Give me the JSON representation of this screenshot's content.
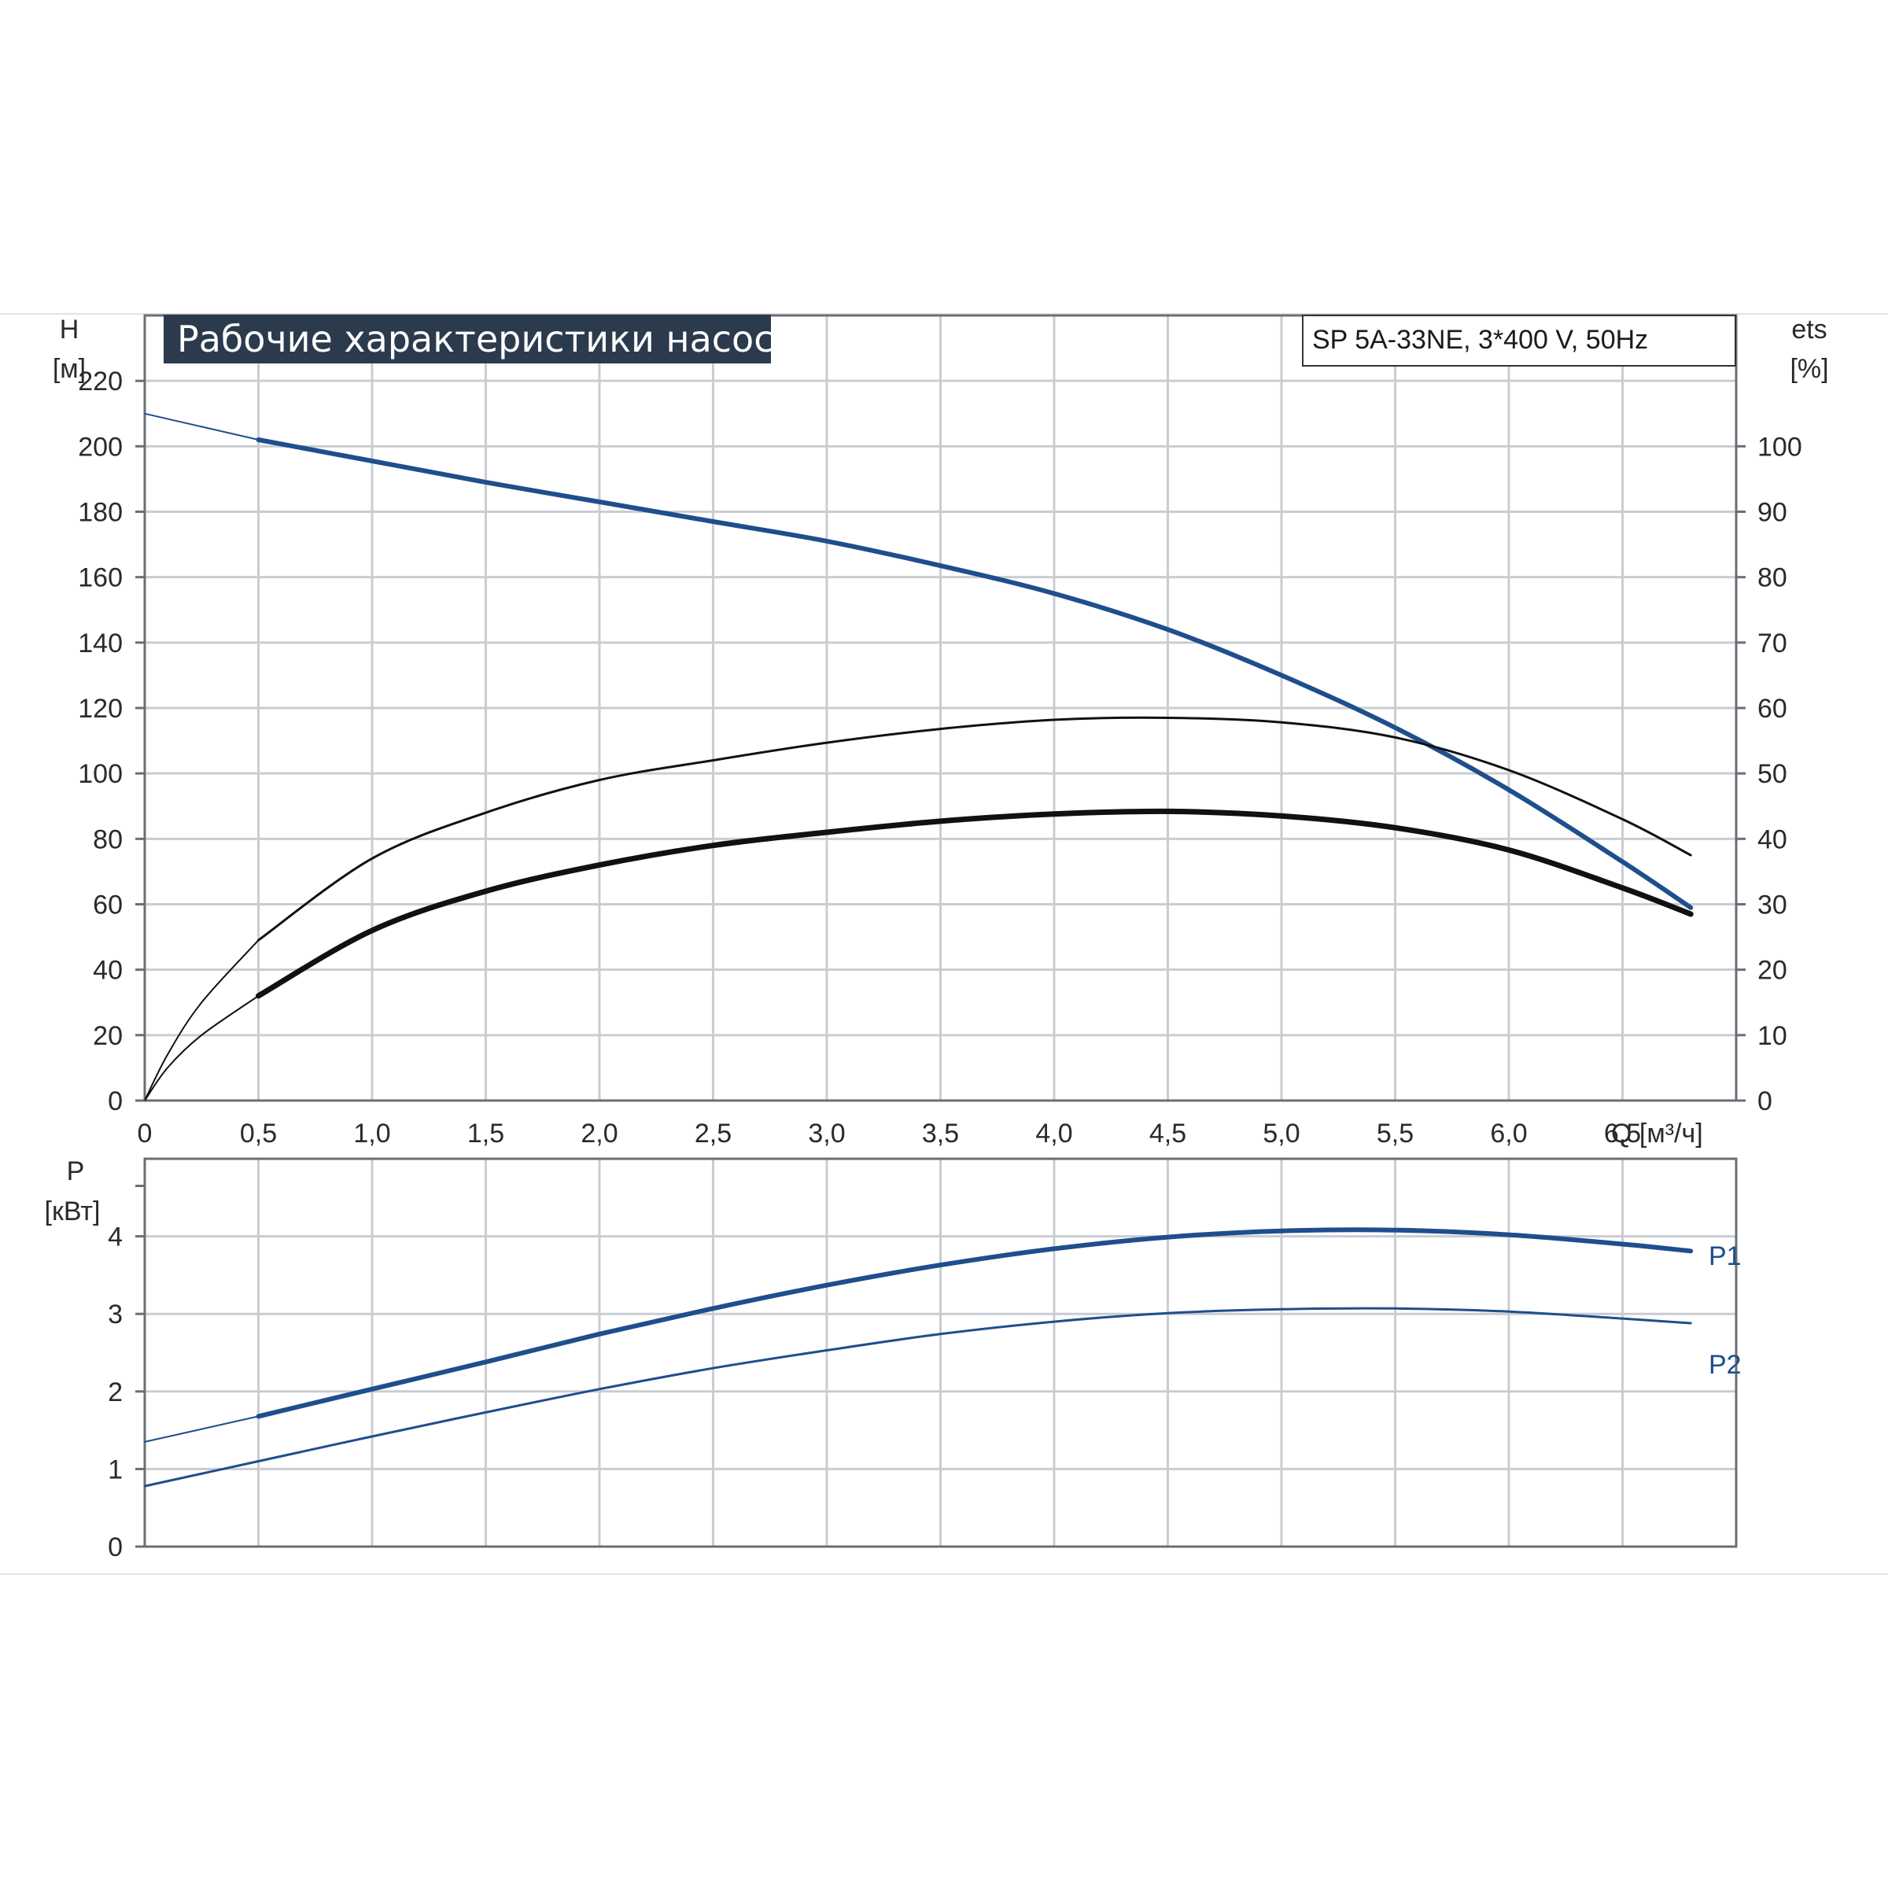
{
  "title": "Рабочие характеристики насоса",
  "model": "SP 5A-33NE, 3*400 V, 50Hz",
  "colors": {
    "blue": "#1f4e8c",
    "black": "#111111",
    "grid": "#c9cdd2",
    "title_bg": "#2b3a4d"
  },
  "chart_data": [
    {
      "type": "line",
      "title": "Рабочие характеристики насоса",
      "xlabel": "Q [м³/ч]",
      "ylabel": "H\n[м]",
      "ylabel_lines": [
        "H",
        "[м]"
      ],
      "y2label_lines": [
        "ets",
        "[%]"
      ],
      "xlim": [
        0,
        7.0
      ],
      "ylim": [
        0,
        240
      ],
      "y2lim": [
        0,
        120
      ],
      "xticks": [
        0,
        0.5,
        1.0,
        1.5,
        2.0,
        2.5,
        3.0,
        3.5,
        4.0,
        4.5,
        5.0,
        5.5,
        6.0,
        6.5
      ],
      "xtick_labels": [
        "0",
        "0,5",
        "1,0",
        "1,5",
        "2,0",
        "2,5",
        "3,0",
        "3,5",
        "4,0",
        "4,5",
        "5,0",
        "5,5",
        "6,0",
        "6,5"
      ],
      "yticks": [
        0,
        20,
        40,
        60,
        80,
        100,
        120,
        140,
        160,
        180,
        200,
        220
      ],
      "ytick_labels": [
        "0",
        "20",
        "40",
        "60",
        "80",
        "100",
        "120",
        "140",
        "160",
        "180",
        "200",
        "220"
      ],
      "y2ticks": [
        0,
        10,
        20,
        30,
        40,
        50,
        60,
        70,
        80,
        90,
        100
      ],
      "y2tick_labels": [
        "0",
        "10",
        "20",
        "30",
        "40",
        "50",
        "60",
        "70",
        "80",
        "90",
        "100"
      ],
      "grid": true,
      "series": [
        {
          "axis": "left",
          "color": "#1f4e8c",
          "width": 6,
          "thin_until": 0.5,
          "x": [
            0,
            0.5,
            1.0,
            1.5,
            2.0,
            2.5,
            3.0,
            3.5,
            4.0,
            4.5,
            5.0,
            5.5,
            6.0,
            6.5,
            6.8
          ],
          "y": [
            210,
            202,
            195.5,
            189,
            183,
            177,
            171,
            163.5,
            155,
            144,
            130,
            114,
            95,
            73,
            59
          ]
        },
        {
          "axis": "right",
          "color": "#111111",
          "width": 3,
          "thin_until": 0.5,
          "x": [
            0,
            0.1,
            0.25,
            0.5,
            1.0,
            1.5,
            2.0,
            2.5,
            3.0,
            3.5,
            4.0,
            4.5,
            5.0,
            5.5,
            6.0,
            6.5,
            6.8
          ],
          "y": [
            0,
            7,
            15,
            24.5,
            37,
            44,
            49,
            52,
            54.7,
            56.8,
            58.2,
            58.5,
            57.8,
            55.5,
            50.5,
            43,
            37.5
          ]
        },
        {
          "axis": "right",
          "color": "#111111",
          "width": 7,
          "thin_until": 0.5,
          "x": [
            0,
            0.1,
            0.25,
            0.5,
            1.0,
            1.5,
            2.0,
            2.5,
            3.0,
            3.5,
            4.0,
            4.5,
            5.0,
            5.5,
            6.0,
            6.5,
            6.8
          ],
          "y": [
            0,
            5,
            10,
            16,
            26,
            32,
            36,
            39,
            41,
            42.7,
            43.8,
            44.2,
            43.5,
            41.7,
            38.3,
            32.5,
            28.5
          ]
        }
      ]
    },
    {
      "type": "line",
      "ylabel": "P\n[кВт]",
      "ylabel_lines": [
        "P",
        "[кВт]"
      ],
      "xlim": [
        0,
        7.0
      ],
      "ylim": [
        0,
        5.0
      ],
      "yticks": [
        0,
        1,
        2,
        3,
        4
      ],
      "ytick_labels": [
        "0",
        "1",
        "2",
        "3",
        "4"
      ],
      "grid": true,
      "series": [
        {
          "name": "P1",
          "color": "#1f4e8c",
          "width": 6,
          "thin_until": 0.5,
          "x": [
            0,
            0.5,
            1.0,
            1.5,
            2.0,
            2.5,
            3.0,
            3.5,
            4.0,
            4.5,
            5.0,
            5.5,
            6.0,
            6.5,
            6.8
          ],
          "y": [
            1.35,
            1.68,
            2.03,
            2.38,
            2.74,
            3.07,
            3.37,
            3.63,
            3.84,
            3.99,
            4.07,
            4.08,
            4.02,
            3.9,
            3.81
          ]
        },
        {
          "name": "P2",
          "color": "#1f4e8c",
          "width": 3,
          "thin_until": 0,
          "x": [
            0,
            0.5,
            1.0,
            1.5,
            2.0,
            2.5,
            3.0,
            3.5,
            4.0,
            4.5,
            5.0,
            5.5,
            6.0,
            6.5,
            6.8
          ],
          "y": [
            0.78,
            1.1,
            1.42,
            1.73,
            2.03,
            2.3,
            2.53,
            2.74,
            2.9,
            3.01,
            3.06,
            3.07,
            3.03,
            2.94,
            2.88
          ]
        }
      ]
    }
  ]
}
